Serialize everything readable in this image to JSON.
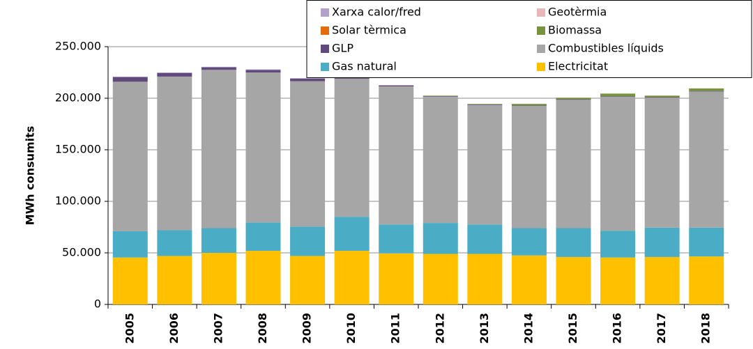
{
  "chart_data": {
    "type": "stacked_bar",
    "y_label": "MWh consumits",
    "categories": [
      "2005",
      "2006",
      "2007",
      "2008",
      "2009",
      "2010",
      "2011",
      "2012",
      "2013",
      "2014",
      "2015",
      "2016",
      "2017",
      "2018"
    ],
    "ylim": [
      0,
      250000
    ],
    "yticks": [
      0,
      {
        "value": 50000,
        "label": "50.000"
      },
      {
        "value": 100000,
        "label": "100.000"
      },
      {
        "value": 150000,
        "label": "150.000"
      },
      {
        "value": 200000,
        "label": "200.000"
      },
      {
        "value": 250000,
        "label": "250.000"
      }
    ],
    "grid": true,
    "series": [
      {
        "name": "Electricitat",
        "color": "#ffc000",
        "values": [
          45500,
          47000,
          50000,
          52000,
          47000,
          52000,
          49500,
          49000,
          49000,
          47500,
          46000,
          45500,
          46000,
          46500
        ]
      },
      {
        "name": "Gas natural",
        "color": "#4bacc6",
        "values": [
          25500,
          25000,
          24000,
          27500,
          28500,
          33000,
          28000,
          30000,
          28500,
          26500,
          28000,
          26000,
          28500,
          28000
        ]
      },
      {
        "name": "Combustibles líquids",
        "color": "#a6a6a6",
        "values": [
          145000,
          149000,
          153500,
          145500,
          141000,
          134000,
          134000,
          122500,
          116000,
          118500,
          124500,
          130000,
          126000,
          132000
        ]
      },
      {
        "name": "GLP",
        "color": "#604a7b",
        "values": [
          4500,
          3500,
          2500,
          2500,
          2500,
          2000,
          1000,
          500,
          500,
          500,
          500,
          500,
          500,
          500
        ]
      },
      {
        "name": "Biomassa",
        "color": "#77933c",
        "values": [
          0,
          0,
          0,
          0,
          0,
          0,
          0,
          500,
          500,
          1500,
          1500,
          2500,
          1500,
          2500
        ]
      },
      {
        "name": "Solar tèrmica",
        "color": "#e46c0a",
        "values": [
          0,
          0,
          0,
          0,
          0,
          0,
          0,
          0,
          0,
          0,
          0,
          0,
          0,
          0
        ]
      },
      {
        "name": "Geotèrmia",
        "color": "#e6b9b8",
        "values": [
          0,
          0,
          0,
          0,
          0,
          0,
          0,
          0,
          0,
          0,
          0,
          0,
          0,
          0
        ]
      },
      {
        "name": "Xarxa calor/fred",
        "color": "#b3a2c7",
        "values": [
          500,
          500,
          500,
          500,
          500,
          0,
          0,
          0,
          0,
          0,
          0,
          0,
          0,
          0
        ]
      }
    ]
  }
}
